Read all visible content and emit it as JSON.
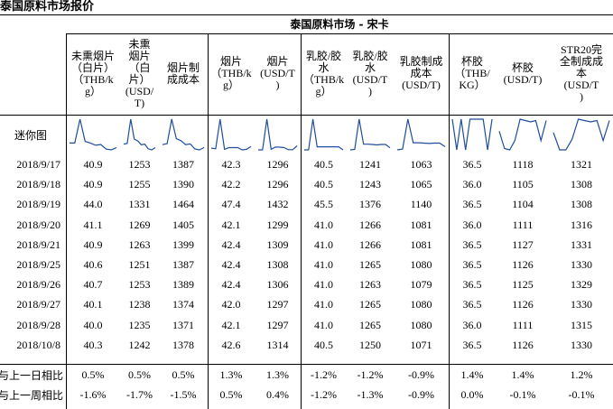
{
  "title": "泰国原料市场报价",
  "market_label": "泰国原料市场 - 宋卡",
  "headers": [
    [
      "未熏烟片",
      "（白片）",
      "（THB/k",
      "g）"
    ],
    [
      "未熏",
      "烟片",
      "（白",
      "片）",
      "(USD/",
      "T)"
    ],
    [
      "烟片制",
      "成成本"
    ],
    [
      "烟片",
      "（THB/k",
      "g）"
    ],
    [
      "烟片",
      "(USD/T",
      ")"
    ],
    [
      "乳胶/胶",
      "水",
      "（THB/k",
      "g）"
    ],
    [
      "乳胶/胶",
      "水",
      "(USD/T",
      ")"
    ],
    [
      "乳胶制成",
      "成本",
      "(USD/T)"
    ],
    [
      "杯胶",
      "（THB/",
      "KG）"
    ],
    [
      "杯胶",
      "(USD/T)"
    ],
    [
      "STR20完",
      "全制成成",
      "本",
      "(USD/T",
      ")"
    ]
  ],
  "sparkline_label": "迷你图",
  "rows": [
    {
      "date": "2018/9/17",
      "values": [
        "40.9",
        "1253",
        "1387",
        "42.3",
        "1296",
        "40.5",
        "1241",
        "1063",
        "36.5",
        "1118",
        "1321"
      ]
    },
    {
      "date": "2018/9/18",
      "values": [
        "40.9",
        "1255",
        "1390",
        "42.2",
        "1296",
        "40.5",
        "1243",
        "1065",
        "36.0",
        "1105",
        "1308"
      ]
    },
    {
      "date": "2018/9/19",
      "values": [
        "44.0",
        "1331",
        "1464",
        "47.4",
        "1432",
        "45.5",
        "1376",
        "1140",
        "36.5",
        "1104",
        "1308"
      ]
    },
    {
      "date": "2018/9/20",
      "values": [
        "41.1",
        "1269",
        "1405",
        "42.1",
        "1299",
        "41.0",
        "1266",
        "1081",
        "36.0",
        "1111",
        "1316"
      ]
    },
    {
      "date": "2018/9/21",
      "values": [
        "40.9",
        "1263",
        "1399",
        "42.4",
        "1309",
        "41.0",
        "1266",
        "1081",
        "36.5",
        "1127",
        "1331"
      ]
    },
    {
      "date": "2018/9/25",
      "values": [
        "40.6",
        "1251",
        "1387",
        "42.4",
        "1308",
        "41.0",
        "1265",
        "1080",
        "36.5",
        "1126",
        "1330"
      ]
    },
    {
      "date": "2018/9/26",
      "values": [
        "40.7",
        "1253",
        "1389",
        "42.4",
        "1306",
        "41.0",
        "1263",
        "1079",
        "36.5",
        "1125",
        "1329"
      ]
    },
    {
      "date": "2018/9/27",
      "values": [
        "40.1",
        "1238",
        "1374",
        "42.0",
        "1297",
        "41.0",
        "1265",
        "1080",
        "36.5",
        "1126",
        "1330"
      ]
    },
    {
      "date": "2018/9/28",
      "values": [
        "40.0",
        "1235",
        "1371",
        "42.1",
        "1297",
        "41.0",
        "1265",
        "1080",
        "36.0",
        "1111",
        "1315"
      ]
    },
    {
      "date": "2018/10/8",
      "values": [
        "40.3",
        "1242",
        "1378",
        "42.6",
        "1314",
        "40.5",
        "1250",
        "1071",
        "36.5",
        "1126",
        "1330"
      ]
    }
  ],
  "changes": [
    {
      "label": "与上一日相比",
      "values": [
        "0.5%",
        "0.5%",
        "0.5%",
        "1.3%",
        "1.3%",
        "-1.2%",
        "-1.2%",
        "-0.9%",
        "1.4%",
        "1.4%",
        "1.2%"
      ]
    },
    {
      "label": "与上一周相比",
      "values": [
        "-1.6%",
        "-1.7%",
        "-1.5%",
        "0.5%",
        "0.4%",
        "-1.2%",
        "-1.3%",
        "-0.9%",
        "0.0%",
        "-0.1%",
        "-0.1%"
      ]
    }
  ],
  "colors": {
    "sparkline": "#1f4e9a",
    "text": "#000000"
  }
}
